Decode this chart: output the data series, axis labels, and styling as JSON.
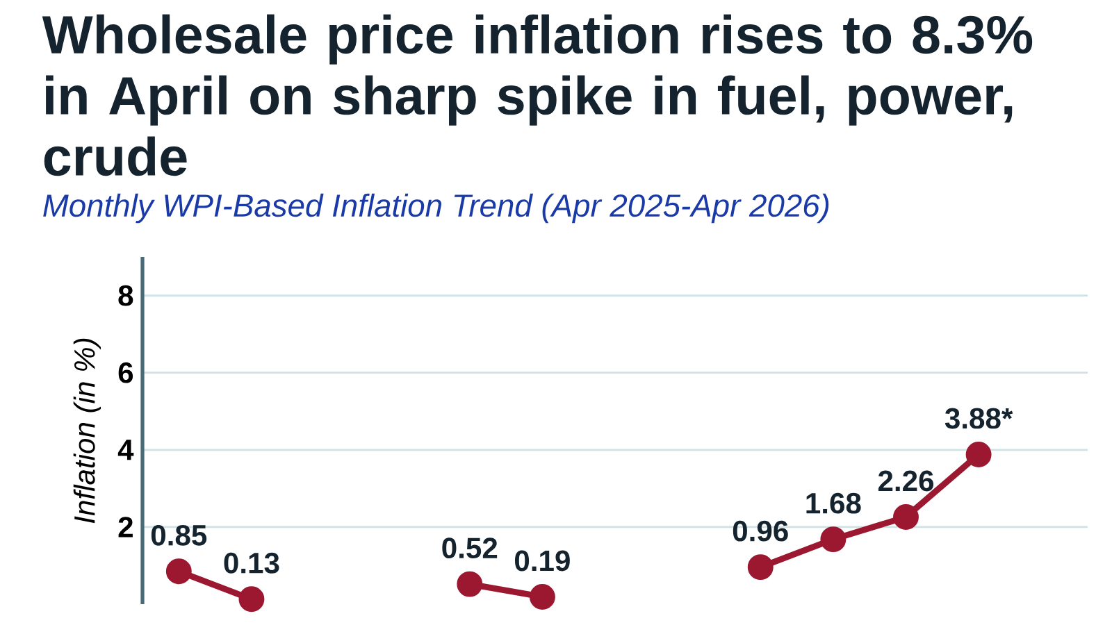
{
  "chart_data": {
    "type": "line",
    "title": "Wholesale price inflation rises to 8.3% in April on sharp spike in fuel, power, crude",
    "subtitle": "Monthly WPI-Based Inflation Trend (Apr 2025-Apr 2026)",
    "ylabel": "Inflation (in %)",
    "categories": [
      null,
      null,
      null,
      null,
      null,
      null,
      null,
      null,
      null,
      null,
      null,
      null,
      null
    ],
    "series": [
      {
        "color": "#9b1830",
        "values": [
          0.85,
          0.13,
          null,
          null,
          0.52,
          0.19,
          null,
          null,
          0.96,
          1.68,
          2.26,
          3.88,
          null
        ],
        "value_labels": [
          "0.85",
          "0.13",
          null,
          null,
          "0.52",
          "0.19",
          null,
          null,
          "0.96",
          "1.68",
          "2.26",
          "3.88*",
          null
        ]
      }
    ],
    "ylim": [
      0,
      9
    ],
    "yticks": [
      2,
      4,
      6,
      8
    ],
    "grid": "y",
    "marker": "circle",
    "line_style": "solid",
    "tick_labels": "y"
  }
}
